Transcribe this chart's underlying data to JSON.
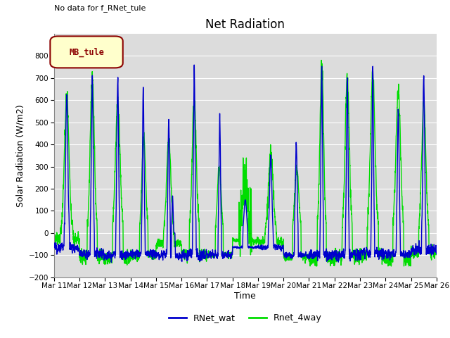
{
  "title": "Net Radiation",
  "ylabel": "Solar Radiation (W/m2)",
  "xlabel": "Time",
  "ylim": [
    -200,
    900
  ],
  "yticks": [
    -200,
    -100,
    0,
    100,
    200,
    300,
    400,
    500,
    600,
    700,
    800
  ],
  "background_color": "#dcdcdc",
  "line1_color": "#0000cc",
  "line2_color": "#00dd00",
  "line1_label": "RNet_wat",
  "line2_label": "Rnet_4way",
  "annotation_text": "No data for f_RNet_tule",
  "legend_text": "MB_tule",
  "legend_box_color": "#ffffcc",
  "legend_box_edge": "#8b0000",
  "xtick_labels": [
    "Mar 11",
    "Mar 12",
    "Mar 13",
    "Mar 14",
    "Mar 15",
    "Mar 16",
    "Mar 17",
    "Mar 18",
    "Mar 19",
    "Mar 20",
    "Mar 21",
    "Mar 22",
    "Mar 23",
    "Mar 24",
    "Mar 25",
    "Mar 26"
  ],
  "title_fontsize": 12,
  "label_fontsize": 9,
  "tick_fontsize": 7.5
}
